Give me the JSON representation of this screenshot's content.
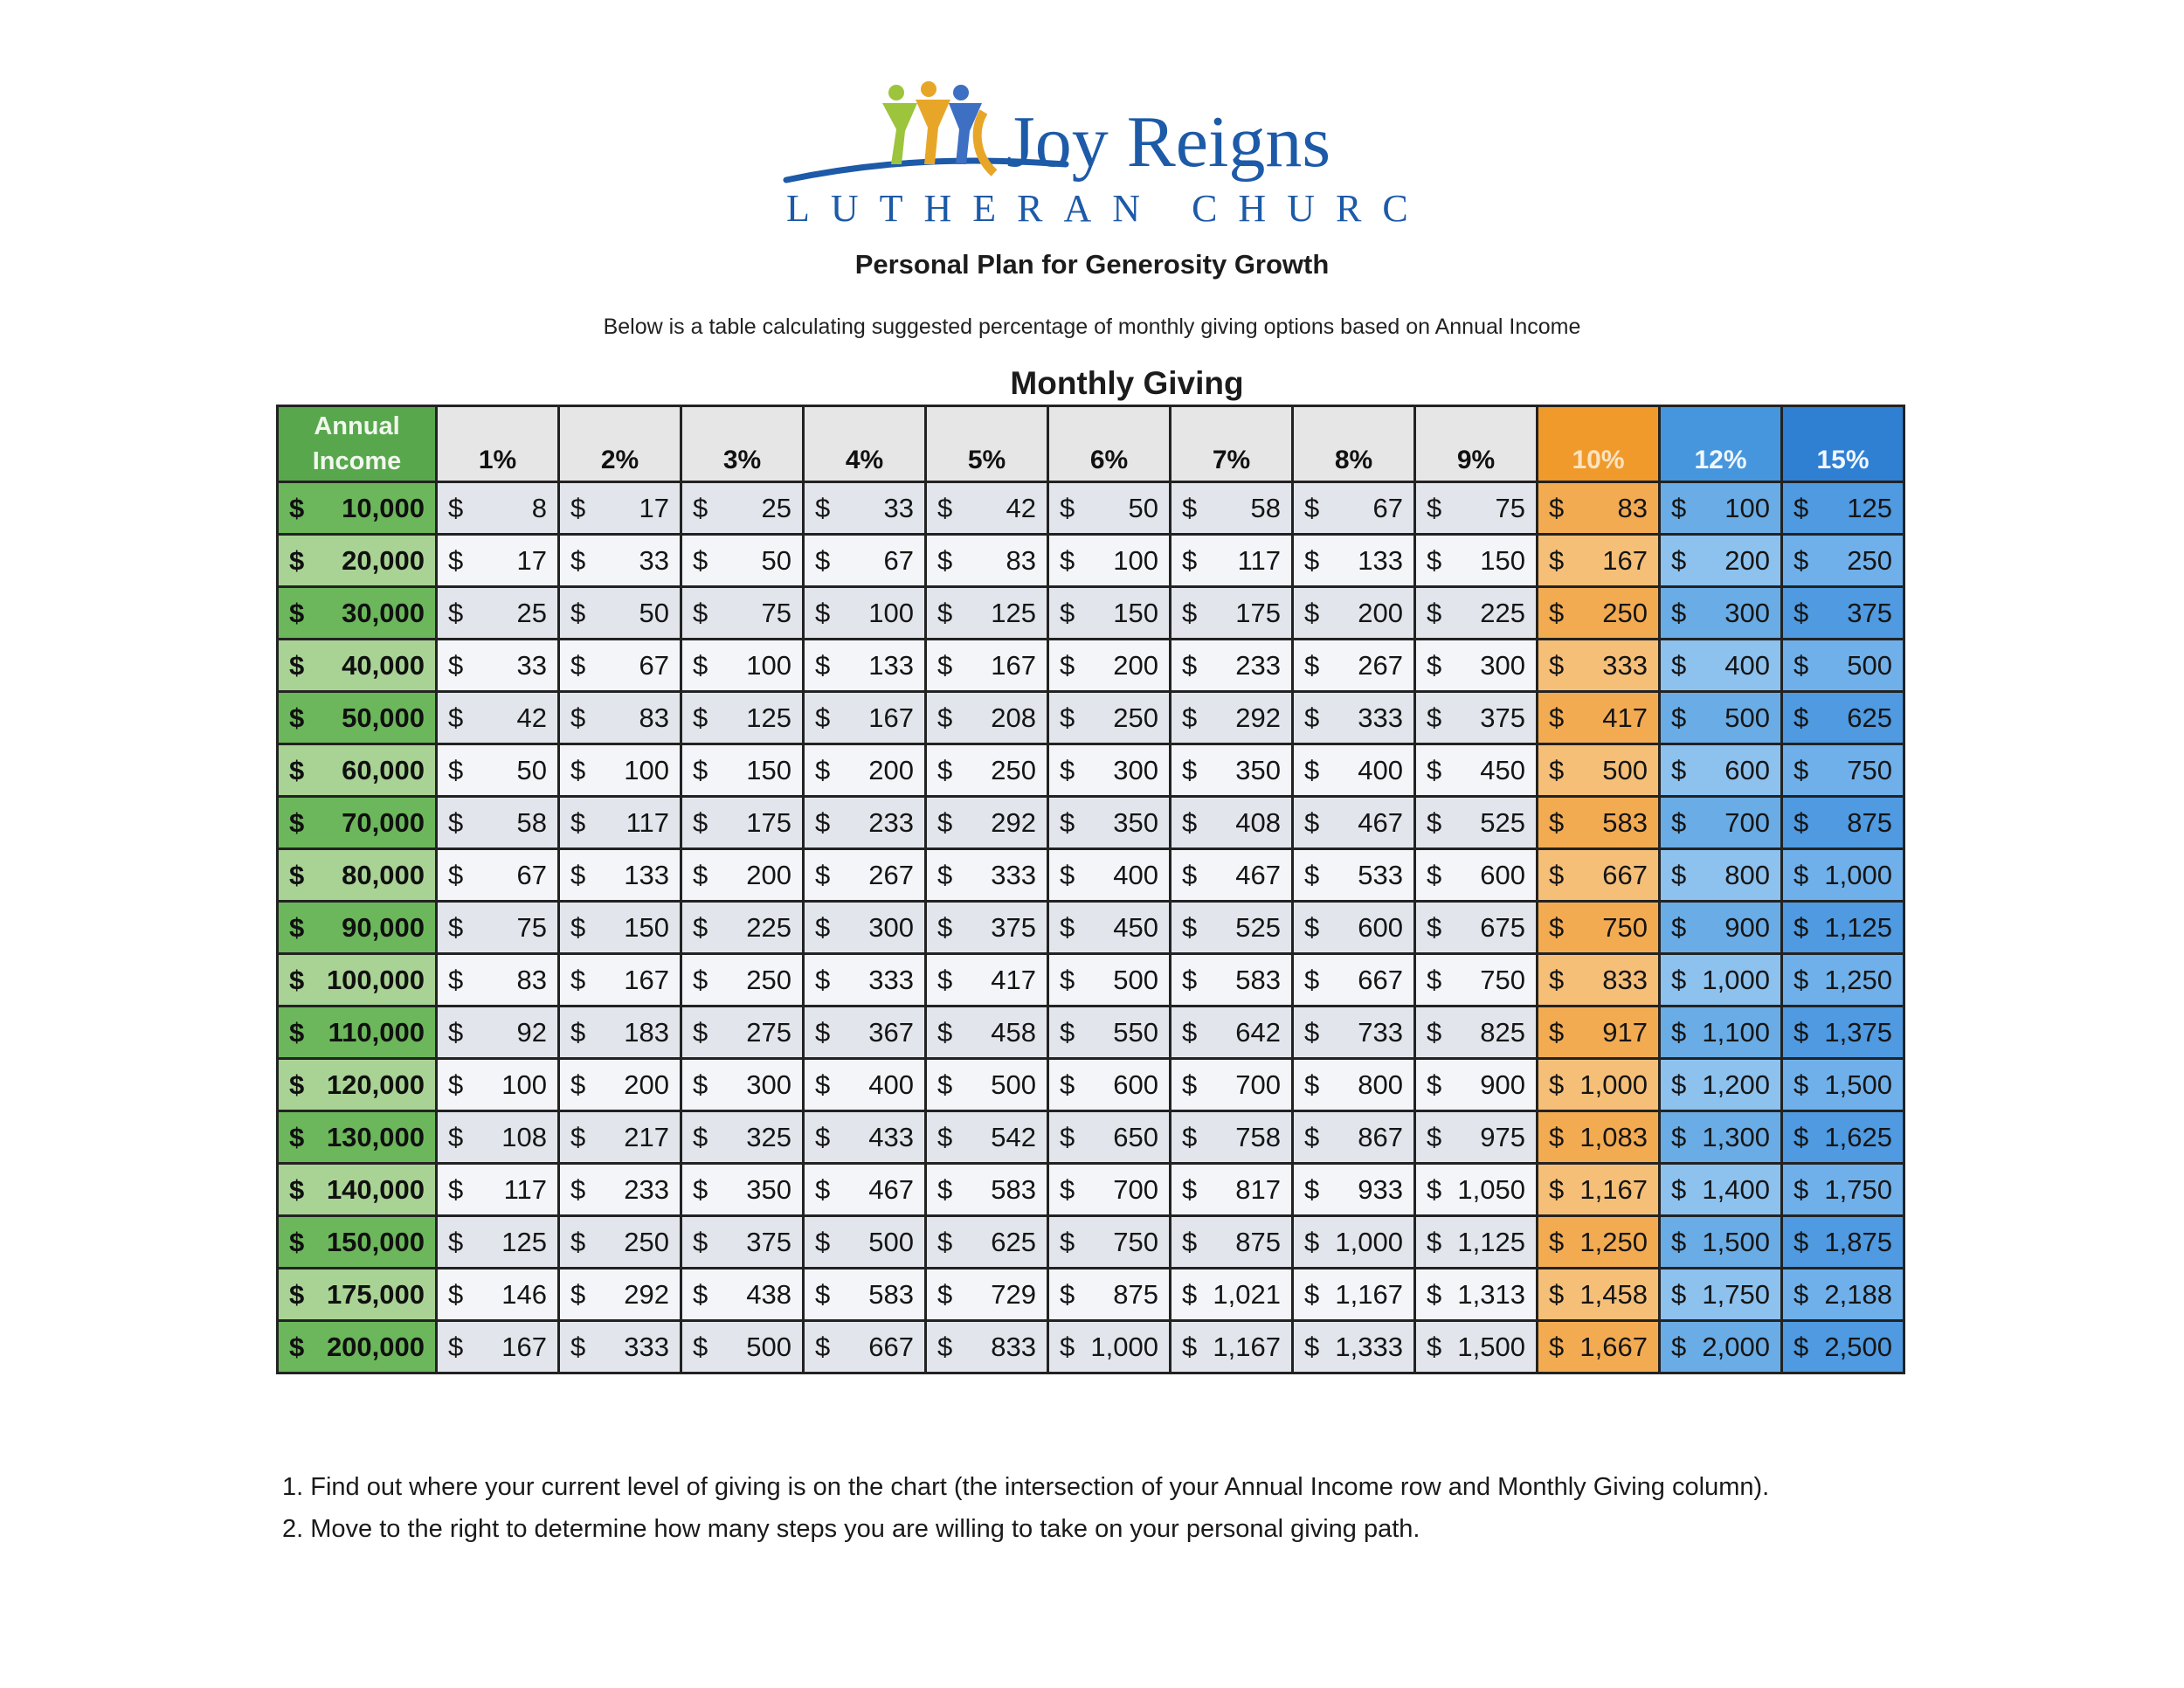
{
  "logo": {
    "name": "Joy Reigns",
    "sub": "LUTHERAN CHURCH",
    "colors": [
      "#9cc43c",
      "#3d6fc2",
      "#e8a628",
      "#1d5aa8"
    ]
  },
  "subtitle": "Personal Plan for Generosity Growth",
  "description": "Below is a table calculating suggested percentage of monthly giving options based on Annual Income",
  "table_title": "Monthly Giving",
  "header": {
    "income_line1": "Annual",
    "income_line2": "Income",
    "percents": [
      "1%",
      "2%",
      "3%",
      "4%",
      "5%",
      "6%",
      "7%",
      "8%",
      "9%",
      "10%",
      "12%",
      "15%"
    ]
  },
  "rows": [
    {
      "income": "10,000",
      "values": [
        "8",
        "17",
        "25",
        "33",
        "42",
        "50",
        "58",
        "67",
        "75",
        "83",
        "100",
        "125"
      ]
    },
    {
      "income": "20,000",
      "values": [
        "17",
        "33",
        "50",
        "67",
        "83",
        "100",
        "117",
        "133",
        "150",
        "167",
        "200",
        "250"
      ]
    },
    {
      "income": "30,000",
      "values": [
        "25",
        "50",
        "75",
        "100",
        "125",
        "150",
        "175",
        "200",
        "225",
        "250",
        "300",
        "375"
      ]
    },
    {
      "income": "40,000",
      "values": [
        "33",
        "67",
        "100",
        "133",
        "167",
        "200",
        "233",
        "267",
        "300",
        "333",
        "400",
        "500"
      ]
    },
    {
      "income": "50,000",
      "values": [
        "42",
        "83",
        "125",
        "167",
        "208",
        "250",
        "292",
        "333",
        "375",
        "417",
        "500",
        "625"
      ]
    },
    {
      "income": "60,000",
      "values": [
        "50",
        "100",
        "150",
        "200",
        "250",
        "300",
        "350",
        "400",
        "450",
        "500",
        "600",
        "750"
      ]
    },
    {
      "income": "70,000",
      "values": [
        "58",
        "117",
        "175",
        "233",
        "292",
        "350",
        "408",
        "467",
        "525",
        "583",
        "700",
        "875"
      ]
    },
    {
      "income": "80,000",
      "values": [
        "67",
        "133",
        "200",
        "267",
        "333",
        "400",
        "467",
        "533",
        "600",
        "667",
        "800",
        "1,000"
      ]
    },
    {
      "income": "90,000",
      "values": [
        "75",
        "150",
        "225",
        "300",
        "375",
        "450",
        "525",
        "600",
        "675",
        "750",
        "900",
        "1,125"
      ]
    },
    {
      "income": "100,000",
      "values": [
        "83",
        "167",
        "250",
        "333",
        "417",
        "500",
        "583",
        "667",
        "750",
        "833",
        "1,000",
        "1,250"
      ]
    },
    {
      "income": "110,000",
      "values": [
        "92",
        "183",
        "275",
        "367",
        "458",
        "550",
        "642",
        "733",
        "825",
        "917",
        "1,100",
        "1,375"
      ]
    },
    {
      "income": "120,000",
      "values": [
        "100",
        "200",
        "300",
        "400",
        "500",
        "600",
        "700",
        "800",
        "900",
        "1,000",
        "1,200",
        "1,500"
      ]
    },
    {
      "income": "130,000",
      "values": [
        "108",
        "217",
        "325",
        "433",
        "542",
        "650",
        "758",
        "867",
        "975",
        "1,083",
        "1,300",
        "1,625"
      ]
    },
    {
      "income": "140,000",
      "values": [
        "117",
        "233",
        "350",
        "467",
        "583",
        "700",
        "817",
        "933",
        "1,050",
        "1,167",
        "1,400",
        "1,750"
      ]
    },
    {
      "income": "150,000",
      "values": [
        "125",
        "250",
        "375",
        "500",
        "625",
        "750",
        "875",
        "1,000",
        "1,125",
        "1,250",
        "1,500",
        "1,875"
      ]
    },
    {
      "income": "175,000",
      "values": [
        "146",
        "292",
        "438",
        "583",
        "729",
        "875",
        "1,021",
        "1,167",
        "1,313",
        "1,458",
        "1,750",
        "2,188"
      ]
    },
    {
      "income": "200,000",
      "values": [
        "167",
        "333",
        "500",
        "667",
        "833",
        "1,000",
        "1,167",
        "1,333",
        "1,500",
        "1,667",
        "2,000",
        "2,500"
      ]
    }
  ],
  "notes": [
    "1. Find out where your current level of giving is on the chart (the intersection of your Annual Income row and Monthly Giving column).",
    "2. Move to the right to determine how many steps you are willing to take on your personal giving path."
  ]
}
